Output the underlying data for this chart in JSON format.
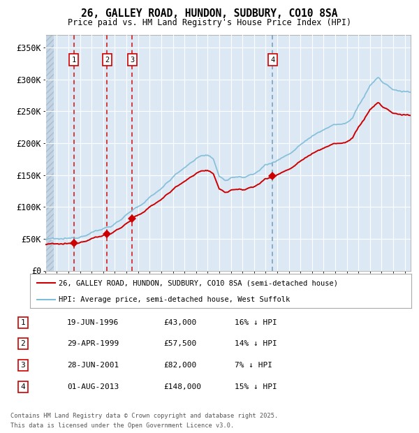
{
  "title_line1": "26, GALLEY ROAD, HUNDON, SUDBURY, CO10 8SA",
  "title_line2": "Price paid vs. HM Land Registry's House Price Index (HPI)",
  "ylim": [
    0,
    370000
  ],
  "yticks": [
    0,
    50000,
    100000,
    150000,
    200000,
    250000,
    300000,
    350000
  ],
  "ytick_labels": [
    "£0",
    "£50K",
    "£100K",
    "£150K",
    "£200K",
    "£250K",
    "£300K",
    "£350K"
  ],
  "bg_color": "#dce9f5",
  "grid_color": "#ffffff",
  "red_color": "#cc0000",
  "blue_color": "#7fbcd8",
  "hatch_facecolor": "#c4d4e4",
  "hatch_edgecolor": "#a8bece",
  "sale_dates": [
    1996.462,
    1999.327,
    2001.487,
    2013.584
  ],
  "sale_prices": [
    43000,
    57500,
    82000,
    148000
  ],
  "sale_labels": [
    "1",
    "2",
    "3",
    "4"
  ],
  "vline_colors": [
    "#cc0000",
    "#cc0000",
    "#cc0000",
    "#6699bb"
  ],
  "legend_line1": "26, GALLEY ROAD, HUNDON, SUDBURY, CO10 8SA (semi-detached house)",
  "legend_line2": "HPI: Average price, semi-detached house, West Suffolk",
  "table_rows": [
    [
      "1",
      "19-JUN-1996",
      "£43,000",
      "16% ↓ HPI"
    ],
    [
      "2",
      "29-APR-1999",
      "£57,500",
      "14% ↓ HPI"
    ],
    [
      "3",
      "28-JUN-2001",
      "£82,000",
      "7% ↓ HPI"
    ],
    [
      "4",
      "01-AUG-2013",
      "£148,000",
      "15% ↓ HPI"
    ]
  ],
  "footnote_line1": "Contains HM Land Registry data © Crown copyright and database right 2025.",
  "footnote_line2": "This data is licensed under the Open Government Licence v3.0.",
  "xmin": 1994.0,
  "xmax": 2025.5,
  "xend_hatch": 1994.75,
  "hpi_key_times": [
    1994,
    1995,
    1996,
    1997,
    1998,
    1999,
    2000,
    2001,
    2002,
    2003,
    2004,
    2005,
    2006,
    2007,
    2007.5,
    2008,
    2008.5,
    2009,
    2009.5,
    2010,
    2011,
    2012,
    2013,
    2013.5,
    2014,
    2015,
    2016,
    2017,
    2018,
    2019,
    2020,
    2020.5,
    2021,
    2022,
    2022.7,
    2023,
    2024,
    2025.5
  ],
  "hpi_key_vals": [
    50000,
    50500,
    51190,
    55000,
    61000,
    67000,
    75000,
    89000,
    102000,
    117000,
    133000,
    150000,
    165000,
    180000,
    185000,
    183000,
    180000,
    152000,
    144000,
    149000,
    151000,
    154000,
    170000,
    174000,
    177000,
    187000,
    202000,
    217000,
    227000,
    234000,
    237000,
    244000,
    264000,
    297000,
    310000,
    304000,
    290000,
    287000
  ]
}
